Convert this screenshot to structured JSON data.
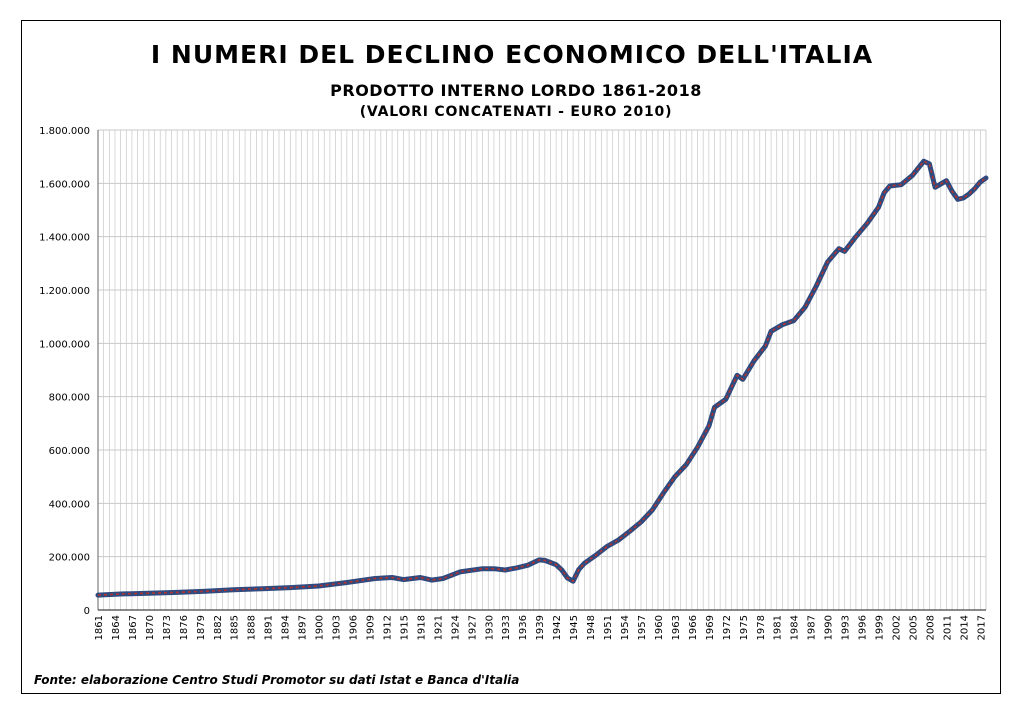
{
  "title": "I NUMERI DEL DECLINO ECONOMICO DELL'ITALIA",
  "subtitle": "PRODOTTO INTERNO LORDO 1861-2018",
  "subtitle2": "(VALORI CONCATENATI - EURO 2010)",
  "source": "Fonte: elaborazione Centro Studi Promotor su dati Istat e Banca d'Italia",
  "colors": {
    "line_outer": "#2f4a7e",
    "line_inner": "#b4332e",
    "grid": "#c8c8c8"
  },
  "chart_data": {
    "type": "line",
    "title": "I NUMERI DEL DECLINO ECONOMICO DELL'ITALIA",
    "subtitle": "PRODOTTO INTERNO LORDO 1861-2018 (VALORI CONCATENATI - EURO 2010)",
    "xlabel": "",
    "ylabel": "",
    "xlim": [
      1861,
      2018
    ],
    "ylim": [
      0,
      1800000
    ],
    "grid": true,
    "legend": "none",
    "y_ticks": [
      0,
      200000,
      400000,
      600000,
      800000,
      1000000,
      1200000,
      1400000,
      1600000,
      1800000
    ],
    "y_tick_labels": [
      "0",
      "200.000",
      "400.000",
      "600.000",
      "800.000",
      "1.000.000",
      "1.200.000",
      "1.400.000",
      "1.600.000",
      "1.800.000"
    ],
    "x_tick_labels": [
      "1861",
      "1864",
      "1867",
      "1870",
      "1873",
      "1876",
      "1879",
      "1882",
      "1885",
      "1888",
      "1891",
      "1894",
      "1897",
      "1900",
      "1903",
      "1906",
      "1909",
      "1912",
      "1915",
      "1918",
      "1921",
      "1924",
      "1927",
      "1930",
      "1933",
      "1936",
      "1939",
      "1942",
      "1945",
      "1948",
      "1951",
      "1954",
      "1957",
      "1960",
      "1963",
      "1966",
      "1969",
      "1972",
      "1975",
      "1978",
      "1981",
      "1984",
      "1987",
      "1990",
      "1993",
      "1996",
      "1999",
      "2002",
      "2005",
      "2008",
      "2011",
      "2014",
      "2017"
    ],
    "series": [
      {
        "x": [
          1861,
          1865,
          1870,
          1875,
          1880,
          1885,
          1890,
          1895,
          1900,
          1905,
          1910,
          1913,
          1915,
          1918,
          1920,
          1922,
          1925,
          1929,
          1931,
          1933,
          1935,
          1937,
          1939,
          1940,
          1941,
          1942,
          1943,
          1944,
          1945,
          1946,
          1947,
          1949,
          1951,
          1953,
          1955,
          1957,
          1959,
          1961,
          1963,
          1965,
          1967,
          1969,
          1970,
          1972,
          1974,
          1975,
          1977,
          1979,
          1980,
          1982,
          1984,
          1986,
          1988,
          1990,
          1992,
          1993,
          1995,
          1997,
          1999,
          2000,
          2001,
          2003,
          2005,
          2007,
          2008,
          2009,
          2011,
          2012,
          2013,
          2014,
          2015,
          2016,
          2017,
          2018
        ],
        "y": [
          56000,
          60000,
          63000,
          66000,
          70000,
          76000,
          80000,
          84000,
          90000,
          103000,
          118000,
          122000,
          114000,
          122000,
          112000,
          118000,
          143000,
          155000,
          155000,
          150000,
          158000,
          168000,
          188000,
          186000,
          178000,
          170000,
          150000,
          120000,
          108000,
          152000,
          175000,
          205000,
          238000,
          262000,
          295000,
          330000,
          375000,
          440000,
          500000,
          545000,
          610000,
          690000,
          760000,
          790000,
          880000,
          865000,
          935000,
          990000,
          1045000,
          1070000,
          1085000,
          1135000,
          1215000,
          1305000,
          1355000,
          1345000,
          1400000,
          1450000,
          1510000,
          1565000,
          1590000,
          1595000,
          1630000,
          1683000,
          1673000,
          1585000,
          1610000,
          1570000,
          1540000,
          1545000,
          1560000,
          1580000,
          1605000,
          1620000
        ]
      }
    ]
  }
}
